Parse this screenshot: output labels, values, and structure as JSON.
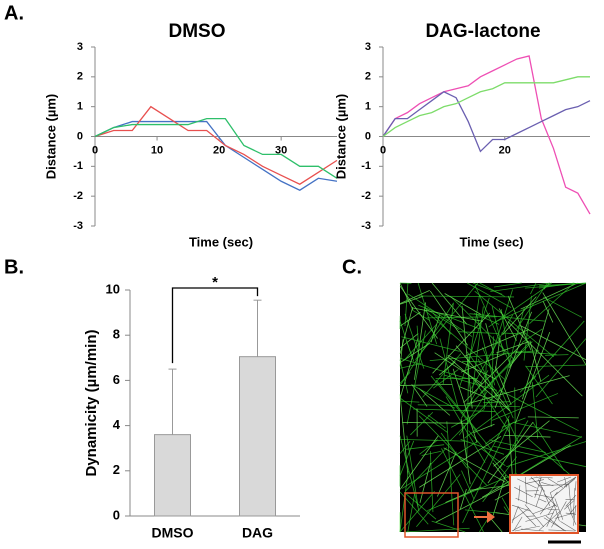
{
  "panel_labels": [
    "A.",
    "B.",
    "C."
  ],
  "chart_data": [
    {
      "type": "line",
      "title": "DMSO",
      "x_label": "Time (sec)",
      "y_label": "Distance (µm)",
      "x": [
        0,
        3,
        6,
        9,
        12,
        15,
        18,
        21,
        24,
        27,
        30,
        33,
        36,
        39
      ],
      "series": [
        {
          "name": null,
          "color": "#4472c4",
          "values": [
            0,
            0.3,
            0.5,
            0.5,
            0.5,
            0.5,
            0.5,
            -0.3,
            -0.7,
            -1.1,
            -1.5,
            -1.8,
            -1.4,
            -1.5
          ]
        },
        {
          "name": null,
          "color": "#e8504f",
          "values": [
            0,
            0.2,
            0.2,
            1.0,
            0.6,
            0.2,
            0.2,
            -0.3,
            -0.6,
            -1.0,
            -1.3,
            -1.6,
            -1.2,
            -0.8
          ]
        },
        {
          "name": null,
          "color": "#2ebf6a",
          "values": [
            0,
            0.3,
            0.4,
            0.4,
            0.4,
            0.4,
            0.6,
            0.6,
            -0.3,
            -0.6,
            -0.6,
            -1.0,
            -1.0,
            -1.4
          ]
        }
      ],
      "xlim": [
        0,
        39
      ],
      "xticks": [
        0,
        10,
        20,
        30
      ],
      "ylim": [
        -3,
        3
      ],
      "yticks": [
        -3,
        -2,
        -1,
        0,
        1,
        2,
        3
      ]
    },
    {
      "type": "line",
      "title": "DAG-lactone",
      "x_label": "Time (sec)",
      "y_label": "Distance (µm)",
      "x": [
        0,
        2,
        4,
        6,
        8,
        10,
        12,
        14,
        16,
        18,
        20,
        22,
        24,
        26,
        28,
        30,
        32,
        34
      ],
      "series": [
        {
          "name": null,
          "color": "#ee4fb4",
          "values": [
            0,
            0.6,
            0.8,
            1.1,
            1.3,
            1.5,
            1.6,
            1.7,
            2.0,
            2.2,
            2.4,
            2.6,
            2.7,
            0.6,
            -0.4,
            -1.7,
            -1.9,
            -2.6
          ]
        },
        {
          "name": null,
          "color": "#6a5fb0",
          "values": [
            0,
            0.6,
            0.6,
            0.9,
            1.2,
            1.5,
            1.3,
            0.5,
            -0.5,
            -0.1,
            -0.1,
            0.1,
            0.3,
            0.5,
            0.7,
            0.9,
            1.0,
            1.2
          ]
        },
        {
          "name": null,
          "color": "#7ddc6a",
          "values": [
            0,
            0.3,
            0.5,
            0.7,
            0.8,
            1.0,
            1.1,
            1.3,
            1.5,
            1.6,
            1.8,
            1.8,
            1.8,
            1.8,
            1.8,
            1.9,
            2.0,
            2.0
          ]
        }
      ],
      "xlim": [
        0,
        34
      ],
      "xticks": [
        0,
        20
      ],
      "ylim": [
        -3,
        3
      ],
      "yticks": [
        -3,
        -2,
        -1,
        0,
        1,
        2,
        3
      ]
    },
    {
      "type": "bar",
      "y_label": "Dynamicity (µm/min)",
      "categories": [
        "DMSO",
        "DAG"
      ],
      "values": [
        3.6,
        7.05
      ],
      "errors": [
        2.9,
        2.5
      ],
      "color": "#d9d9d9",
      "annotation": "*",
      "ylim": [
        0,
        10
      ],
      "yticks": [
        0,
        2,
        4,
        6,
        8,
        10
      ]
    }
  ]
}
